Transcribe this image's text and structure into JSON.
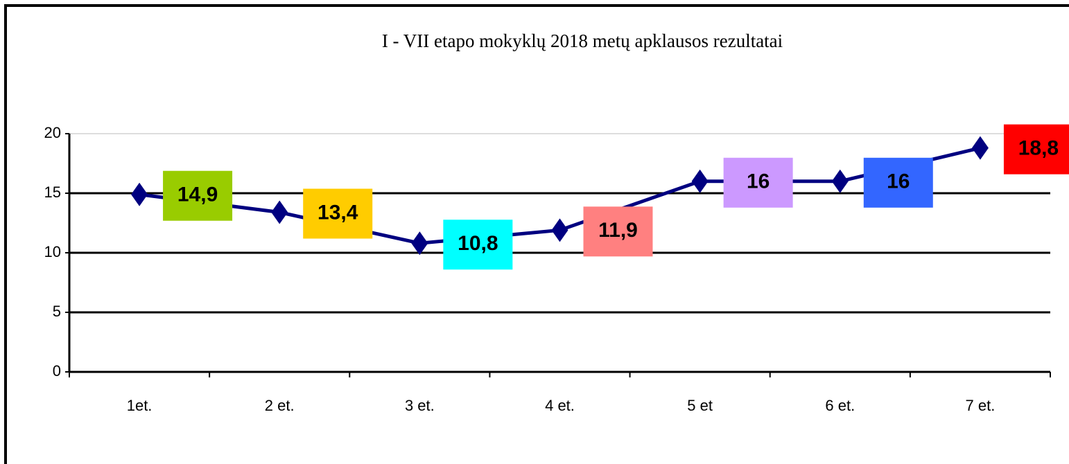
{
  "chart_data": {
    "type": "line",
    "title": "I - VII etapo mokyklų 2018 metų apklausos rezultatai",
    "categories": [
      "1et.",
      "2 et.",
      "3 et.",
      "4 et.",
      "5 et",
      "6 et.",
      "7 et."
    ],
    "values": [
      14.9,
      13.4,
      10.8,
      11.9,
      16,
      16,
      18.8
    ],
    "value_labels": [
      "14,9",
      "13,4",
      "10,8",
      "11,9",
      "16",
      "16",
      "18,8"
    ],
    "label_colors": [
      "#99cc00",
      "#ffcc00",
      "#00ffff",
      "#ff8080",
      "#cc99ff",
      "#3366ff",
      "#ff0000"
    ],
    "color": "#000080",
    "ylim": [
      0,
      20
    ],
    "yticks": [
      0,
      5,
      10,
      15,
      20
    ],
    "grid": true
  }
}
